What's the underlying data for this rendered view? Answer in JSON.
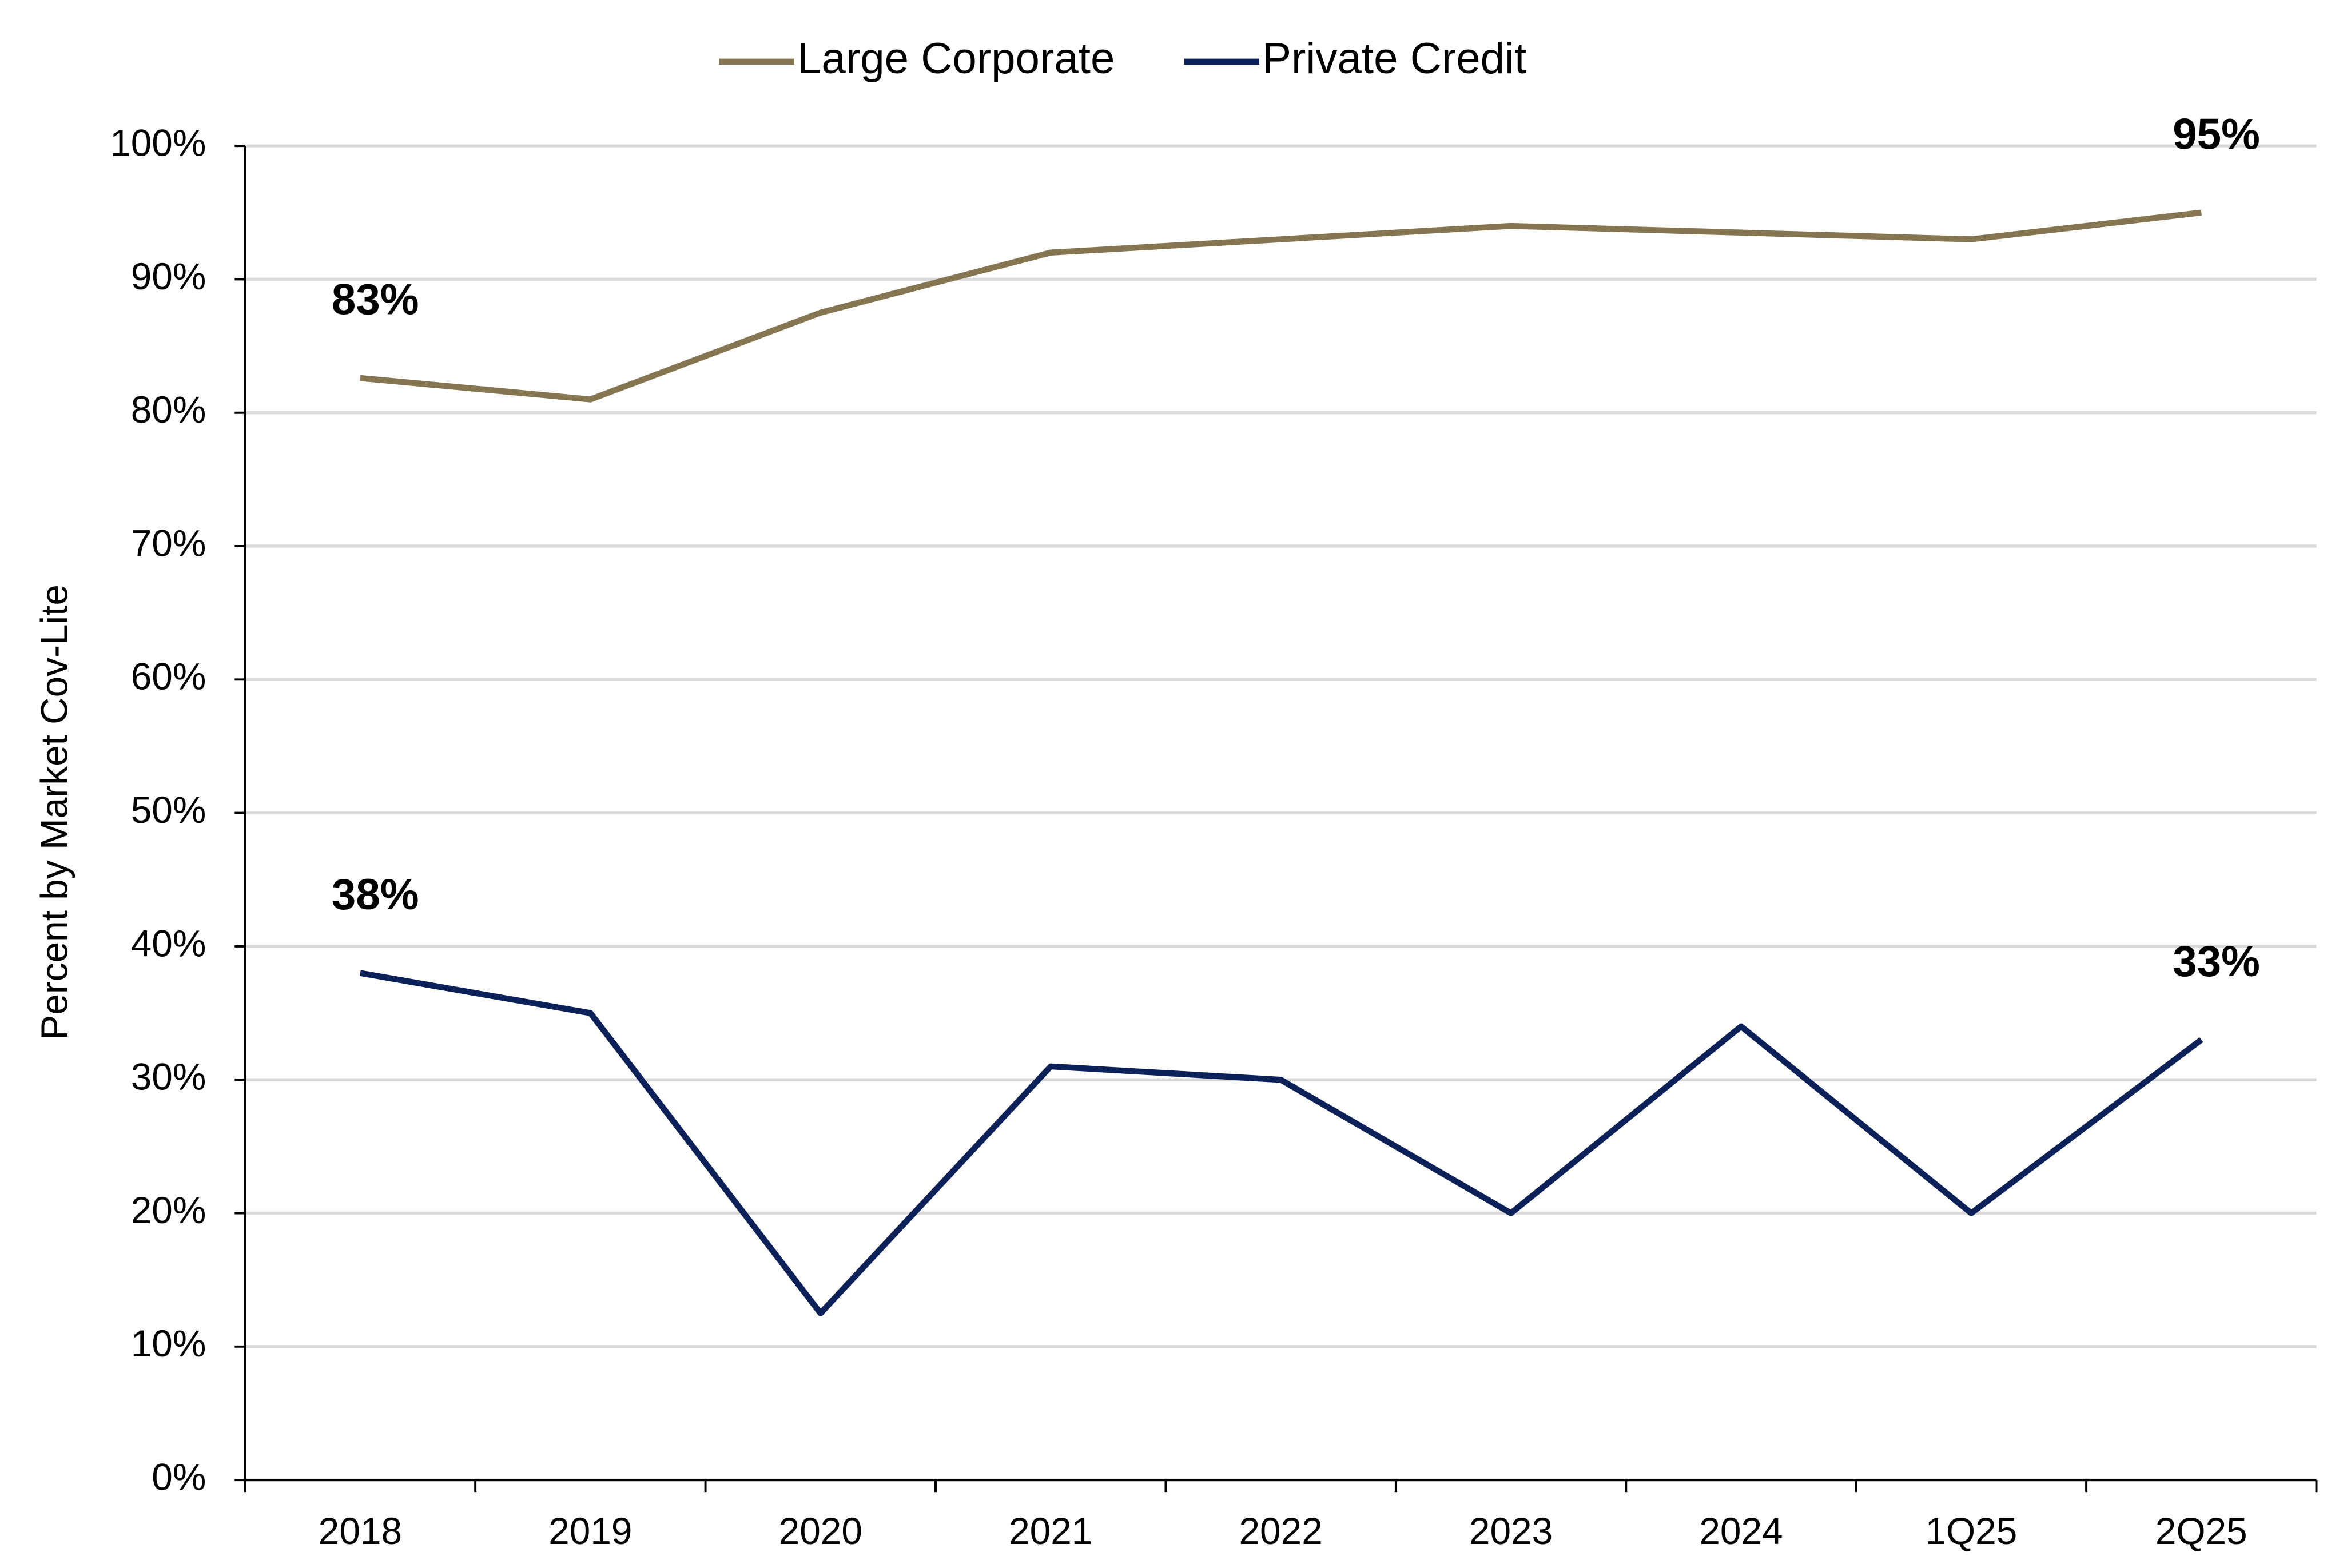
{
  "chart_data": {
    "type": "line",
    "y_label": "Percent by Market Cov-Lite",
    "categories": [
      "2018",
      "2019",
      "2020",
      "2021",
      "2022",
      "2023",
      "2024",
      "1Q25",
      "2Q25"
    ],
    "series": [
      {
        "name": "Large Corporate",
        "color": "#857550",
        "values": [
          82.6,
          81,
          87.5,
          92,
          93,
          94,
          93.5,
          93,
          95
        ],
        "value_labels": [
          "83%",
          null,
          null,
          null,
          null,
          null,
          null,
          null,
          "95%"
        ]
      },
      {
        "name": "Private Credit",
        "color": "#0c2158",
        "values": [
          38,
          35,
          12.5,
          31,
          30,
          20,
          34,
          20,
          33
        ],
        "value_labels": [
          "38%",
          null,
          null,
          null,
          null,
          null,
          null,
          null,
          "33%"
        ]
      }
    ],
    "ylim": [
      0,
      100
    ],
    "yticks": [
      {
        "value": 0,
        "label": "0%"
      },
      {
        "value": 10,
        "label": "10%"
      },
      {
        "value": 20,
        "label": "20%"
      },
      {
        "value": 30,
        "label": "30%"
      },
      {
        "value": 40,
        "label": "40%"
      },
      {
        "value": 50,
        "label": "50%"
      },
      {
        "value": 60,
        "label": "60%"
      },
      {
        "value": 70,
        "label": "70%"
      },
      {
        "value": 80,
        "label": "80%"
      },
      {
        "value": 90,
        "label": "90%"
      },
      {
        "value": 100,
        "label": "100%"
      }
    ],
    "grid": true,
    "legend": "top"
  }
}
